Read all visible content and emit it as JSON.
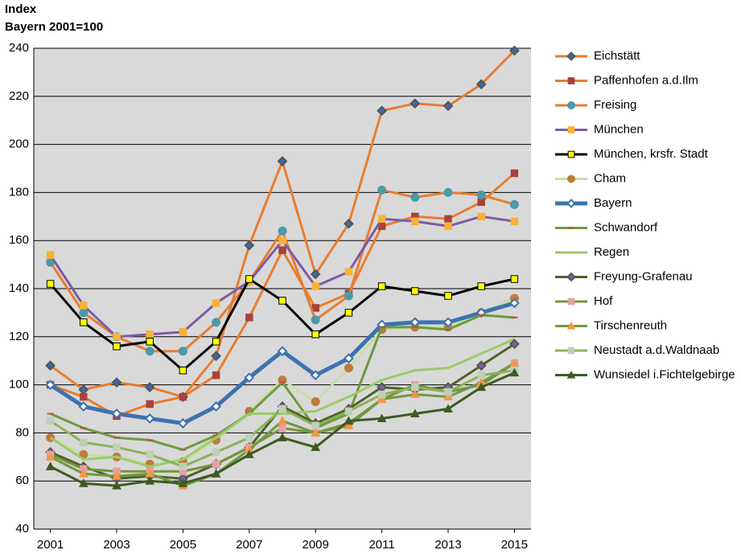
{
  "chart_data": {
    "type": "line",
    "title": "Index",
    "subtitle": "Bayern 2001=100",
    "x": [
      2001,
      2002,
      2003,
      2004,
      2005,
      2006,
      2007,
      2008,
      2009,
      2010,
      2011,
      2012,
      2013,
      2014,
      2015
    ],
    "xlim": [
      2000.5,
      2015.5
    ],
    "xticks": [
      2001,
      2003,
      2005,
      2007,
      2009,
      2011,
      2013,
      2015
    ],
    "ylim": [
      40,
      240
    ],
    "yticks": [
      40,
      60,
      80,
      100,
      120,
      140,
      160,
      180,
      200,
      220,
      240
    ],
    "grid": true,
    "legend": "right",
    "series": [
      {
        "name": "Eichstätt",
        "color": "#E87D2E",
        "marker": "diamond",
        "marker_color": "#3A6AB0",
        "line_width": 3,
        "values": [
          108,
          98,
          101,
          99,
          95,
          112,
          158,
          193,
          146,
          167,
          214,
          217,
          216,
          225,
          239
        ]
      },
      {
        "name": "Paffenhofen a.d.Ilm",
        "color": "#E87D2E",
        "marker": "square",
        "marker_color": "#A8423C",
        "line_width": 3,
        "values": [
          100,
          95,
          87,
          92,
          95,
          104,
          128,
          156,
          132,
          138,
          166,
          170,
          169,
          176,
          188
        ]
      },
      {
        "name": "Freising",
        "color": "#E87D2E",
        "marker": "circle",
        "marker_color": "#4A9AA8",
        "line_width": 3,
        "values": [
          151,
          130,
          120,
          114,
          114,
          126,
          143,
          164,
          127,
          137,
          181,
          178,
          180,
          179,
          175
        ]
      },
      {
        "name": "München",
        "color": "#7D5BA6",
        "marker": "square",
        "marker_color": "#F9B233",
        "line_width": 3,
        "values": [
          154,
          133,
          120,
          121,
          122,
          134,
          143,
          160,
          141,
          147,
          169,
          168,
          166,
          170,
          168
        ]
      },
      {
        "name": "München, krsfr. Stadt",
        "color": "#000000",
        "marker": "square",
        "marker_color": "#FFFF00",
        "line_width": 3,
        "values": [
          142,
          126,
          116,
          118,
          106,
          118,
          144,
          135,
          121,
          130,
          141,
          139,
          137,
          141,
          144
        ]
      },
      {
        "name": "Cham",
        "color": "#C6E0A4",
        "marker": "circle",
        "marker_color": "#C07A3C",
        "line_width": 3,
        "values": [
          78,
          71,
          70,
          67,
          68,
          77,
          89,
          102,
          93,
          107,
          123,
          124,
          124,
          130,
          136
        ]
      },
      {
        "name": "Bayern",
        "color": "#3D72B0",
        "marker": "diamond",
        "marker_color": "#FFFFFF",
        "line_width": 5,
        "values": [
          100,
          91,
          88,
          86,
          84,
          91,
          103,
          114,
          104,
          111,
          125,
          126,
          126,
          130,
          134
        ]
      },
      {
        "name": "Schwandorf",
        "color": "#6E9A3E",
        "marker": "dash",
        "marker_color": "#C0504D",
        "line_width": 3,
        "values": [
          88,
          82,
          78,
          77,
          73,
          79,
          88,
          101,
          82,
          88,
          124,
          124,
          123,
          129,
          128
        ]
      },
      {
        "name": "Regen",
        "color": "#9BCB6A",
        "marker": "none",
        "marker_color": "#9BCB6A",
        "line_width": 3,
        "values": [
          78,
          69,
          70,
          66,
          69,
          78,
          88,
          88,
          89,
          95,
          102,
          106,
          107,
          113,
          119
        ]
      },
      {
        "name": "Freyung-Grafenau",
        "color": "#4F6228",
        "marker": "diamond",
        "marker_color": "#8064A2",
        "line_width": 3,
        "values": [
          72,
          66,
          61,
          62,
          61,
          67,
          74,
          91,
          84,
          90,
          99,
          98,
          99,
          108,
          117
        ]
      },
      {
        "name": "Hof",
        "color": "#77933C",
        "marker": "square",
        "marker_color": "#E6A0A0",
        "line_width": 3,
        "values": [
          71,
          65,
          64,
          64,
          64,
          67,
          74,
          82,
          80,
          84,
          94,
          100,
          97,
          100,
          109
        ]
      },
      {
        "name": "Tirschenreuth",
        "color": "#6E9A3E",
        "marker": "triangle",
        "marker_color": "#F79646",
        "line_width": 3,
        "values": [
          70,
          63,
          62,
          63,
          58,
          63,
          73,
          85,
          80,
          83,
          94,
          96,
          95,
          101,
          109
        ]
      },
      {
        "name": "Neustadt a.d.Waldnaab",
        "color": "#8AB25A",
        "marker": "square",
        "marker_color": "#BFCFB8",
        "line_width": 3,
        "values": [
          85,
          76,
          74,
          71,
          66,
          72,
          78,
          90,
          83,
          89,
          96,
          99,
          97,
          104,
          106
        ]
      },
      {
        "name": "Wunsiedel i.Fichtelgebirge",
        "color": "#3E5A22",
        "marker": "triangle",
        "marker_color": "#3E5A22",
        "line_width": 3,
        "values": [
          66,
          59,
          58,
          60,
          59,
          63,
          71,
          78,
          74,
          85,
          86,
          88,
          90,
          99,
          105
        ]
      }
    ]
  }
}
